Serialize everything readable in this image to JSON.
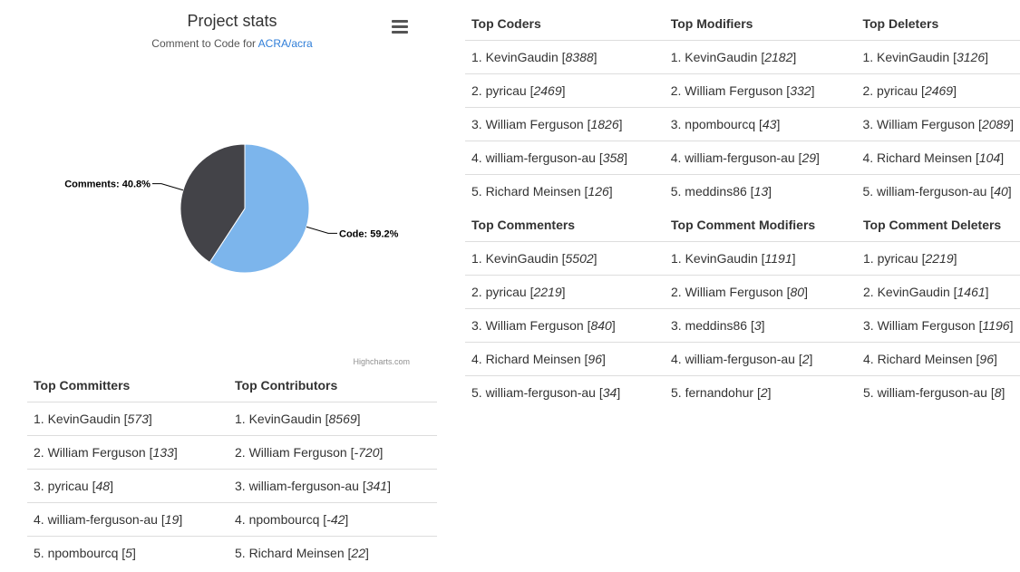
{
  "chart": {
    "title": "Project stats",
    "subtitle_prefix": "Comment to Code for ",
    "subtitle_link": "ACRA/acra",
    "credits": "Highcharts.com"
  },
  "chart_data": {
    "type": "pie",
    "title": "Project stats",
    "subtitle": "Comment to Code for ACRA/acra",
    "slices": [
      {
        "name": "Code",
        "value": 59.2,
        "label": "Code: 59.2%",
        "color": "#7cb5ec"
      },
      {
        "name": "Comments",
        "value": 40.8,
        "label": "Comments: 40.8%",
        "color": "#434348"
      }
    ]
  },
  "tables": {
    "committers": {
      "header1": "Top Committers",
      "header2": "Top Contributors",
      "rows": [
        [
          {
            "rank": "1. KevinGaudin [",
            "num": "573",
            "close": "]"
          },
          {
            "rank": "1. KevinGaudin [",
            "num": "8569",
            "close": "]"
          }
        ],
        [
          {
            "rank": "2. William Ferguson [",
            "num": "133",
            "close": "]"
          },
          {
            "rank": "2. William Ferguson [",
            "num": "-720",
            "close": "]"
          }
        ],
        [
          {
            "rank": "3. pyricau [",
            "num": "48",
            "close": "]"
          },
          {
            "rank": "3. william-ferguson-au [",
            "num": "341",
            "close": "]"
          }
        ],
        [
          {
            "rank": "4. william-ferguson-au [",
            "num": "19",
            "close": "]"
          },
          {
            "rank": "4. npombourcq [",
            "num": "-42",
            "close": "]"
          }
        ],
        [
          {
            "rank": "5. npombourcq [",
            "num": "5",
            "close": "]"
          },
          {
            "rank": "5. Richard Meinsen [",
            "num": "22",
            "close": "]"
          }
        ]
      ]
    },
    "coders": {
      "header1": "Top Coders",
      "header2": "Top Modifiers",
      "header3": "Top Deleters",
      "rows": [
        [
          {
            "rank": "1. KevinGaudin [",
            "num": "8388",
            "close": "]"
          },
          {
            "rank": "1. KevinGaudin [",
            "num": "2182",
            "close": "]"
          },
          {
            "rank": "1. KevinGaudin [",
            "num": "3126",
            "close": "]"
          }
        ],
        [
          {
            "rank": "2. pyricau [",
            "num": "2469",
            "close": "]"
          },
          {
            "rank": "2. William Ferguson [",
            "num": "332",
            "close": "]"
          },
          {
            "rank": "2. pyricau [",
            "num": "2469",
            "close": "]"
          }
        ],
        [
          {
            "rank": "3. William Ferguson [",
            "num": "1826",
            "close": "]"
          },
          {
            "rank": "3. npombourcq [",
            "num": "43",
            "close": "]"
          },
          {
            "rank": "3. William Ferguson [",
            "num": "2089",
            "close": "]"
          }
        ],
        [
          {
            "rank": "4. william-ferguson-au [",
            "num": "358",
            "close": "]"
          },
          {
            "rank": "4. william-ferguson-au [",
            "num": "29",
            "close": "]"
          },
          {
            "rank": "4. Richard Meinsen [",
            "num": "104",
            "close": "]"
          }
        ],
        [
          {
            "rank": "5. Richard Meinsen [",
            "num": "126",
            "close": "]"
          },
          {
            "rank": "5. meddins86 [",
            "num": "13",
            "close": "]"
          },
          {
            "rank": "5. william-ferguson-au [",
            "num": "40",
            "close": "]"
          }
        ]
      ]
    },
    "commenters": {
      "header1": "Top Commenters",
      "header2": "Top Comment Modifiers",
      "header3": "Top Comment Deleters",
      "rows": [
        [
          {
            "rank": "1. KevinGaudin [",
            "num": "5502",
            "close": "]"
          },
          {
            "rank": "1. KevinGaudin [",
            "num": "1191",
            "close": "]"
          },
          {
            "rank": "1. pyricau [",
            "num": "2219",
            "close": "]"
          }
        ],
        [
          {
            "rank": "2. pyricau [",
            "num": "2219",
            "close": "]"
          },
          {
            "rank": "2. William Ferguson [",
            "num": "80",
            "close": "]"
          },
          {
            "rank": "2. KevinGaudin [",
            "num": "1461",
            "close": "]"
          }
        ],
        [
          {
            "rank": "3. William Ferguson [",
            "num": "840",
            "close": "]"
          },
          {
            "rank": "3. meddins86 [",
            "num": "3",
            "close": "]"
          },
          {
            "rank": "3. William Ferguson [",
            "num": "1196",
            "close": "]"
          }
        ],
        [
          {
            "rank": "4. Richard Meinsen [",
            "num": "96",
            "close": "]"
          },
          {
            "rank": "4. william-ferguson-au [",
            "num": "2",
            "close": "]"
          },
          {
            "rank": "4. Richard Meinsen [",
            "num": "96",
            "close": "]"
          }
        ],
        [
          {
            "rank": "5. william-ferguson-au [",
            "num": "34",
            "close": "]"
          },
          {
            "rank": "5. fernandohur [",
            "num": "2",
            "close": "]"
          },
          {
            "rank": "5. william-ferguson-au [",
            "num": "8",
            "close": "]"
          }
        ]
      ]
    }
  }
}
